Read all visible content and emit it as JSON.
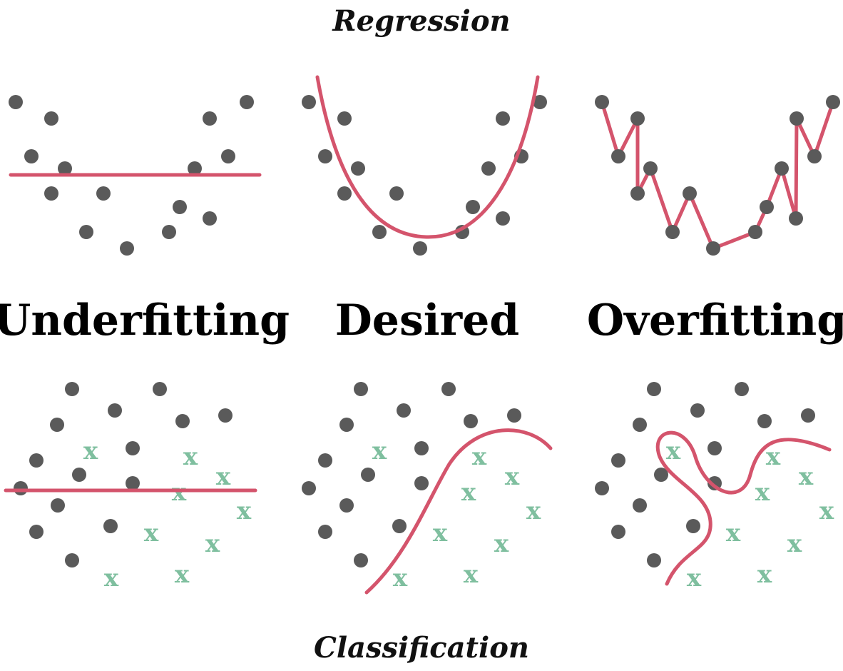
{
  "labels": {
    "top": "Regression",
    "bottom": "Classification",
    "columns": [
      "Underfitting",
      "Desired",
      "Overfitting"
    ]
  },
  "colors": {
    "dot": "#5a5a5a",
    "fit_line": "#d4546c",
    "x_marker": "#7fbf9f",
    "text": "#000000"
  },
  "markers": {
    "class_x_glyph": "x"
  }
}
